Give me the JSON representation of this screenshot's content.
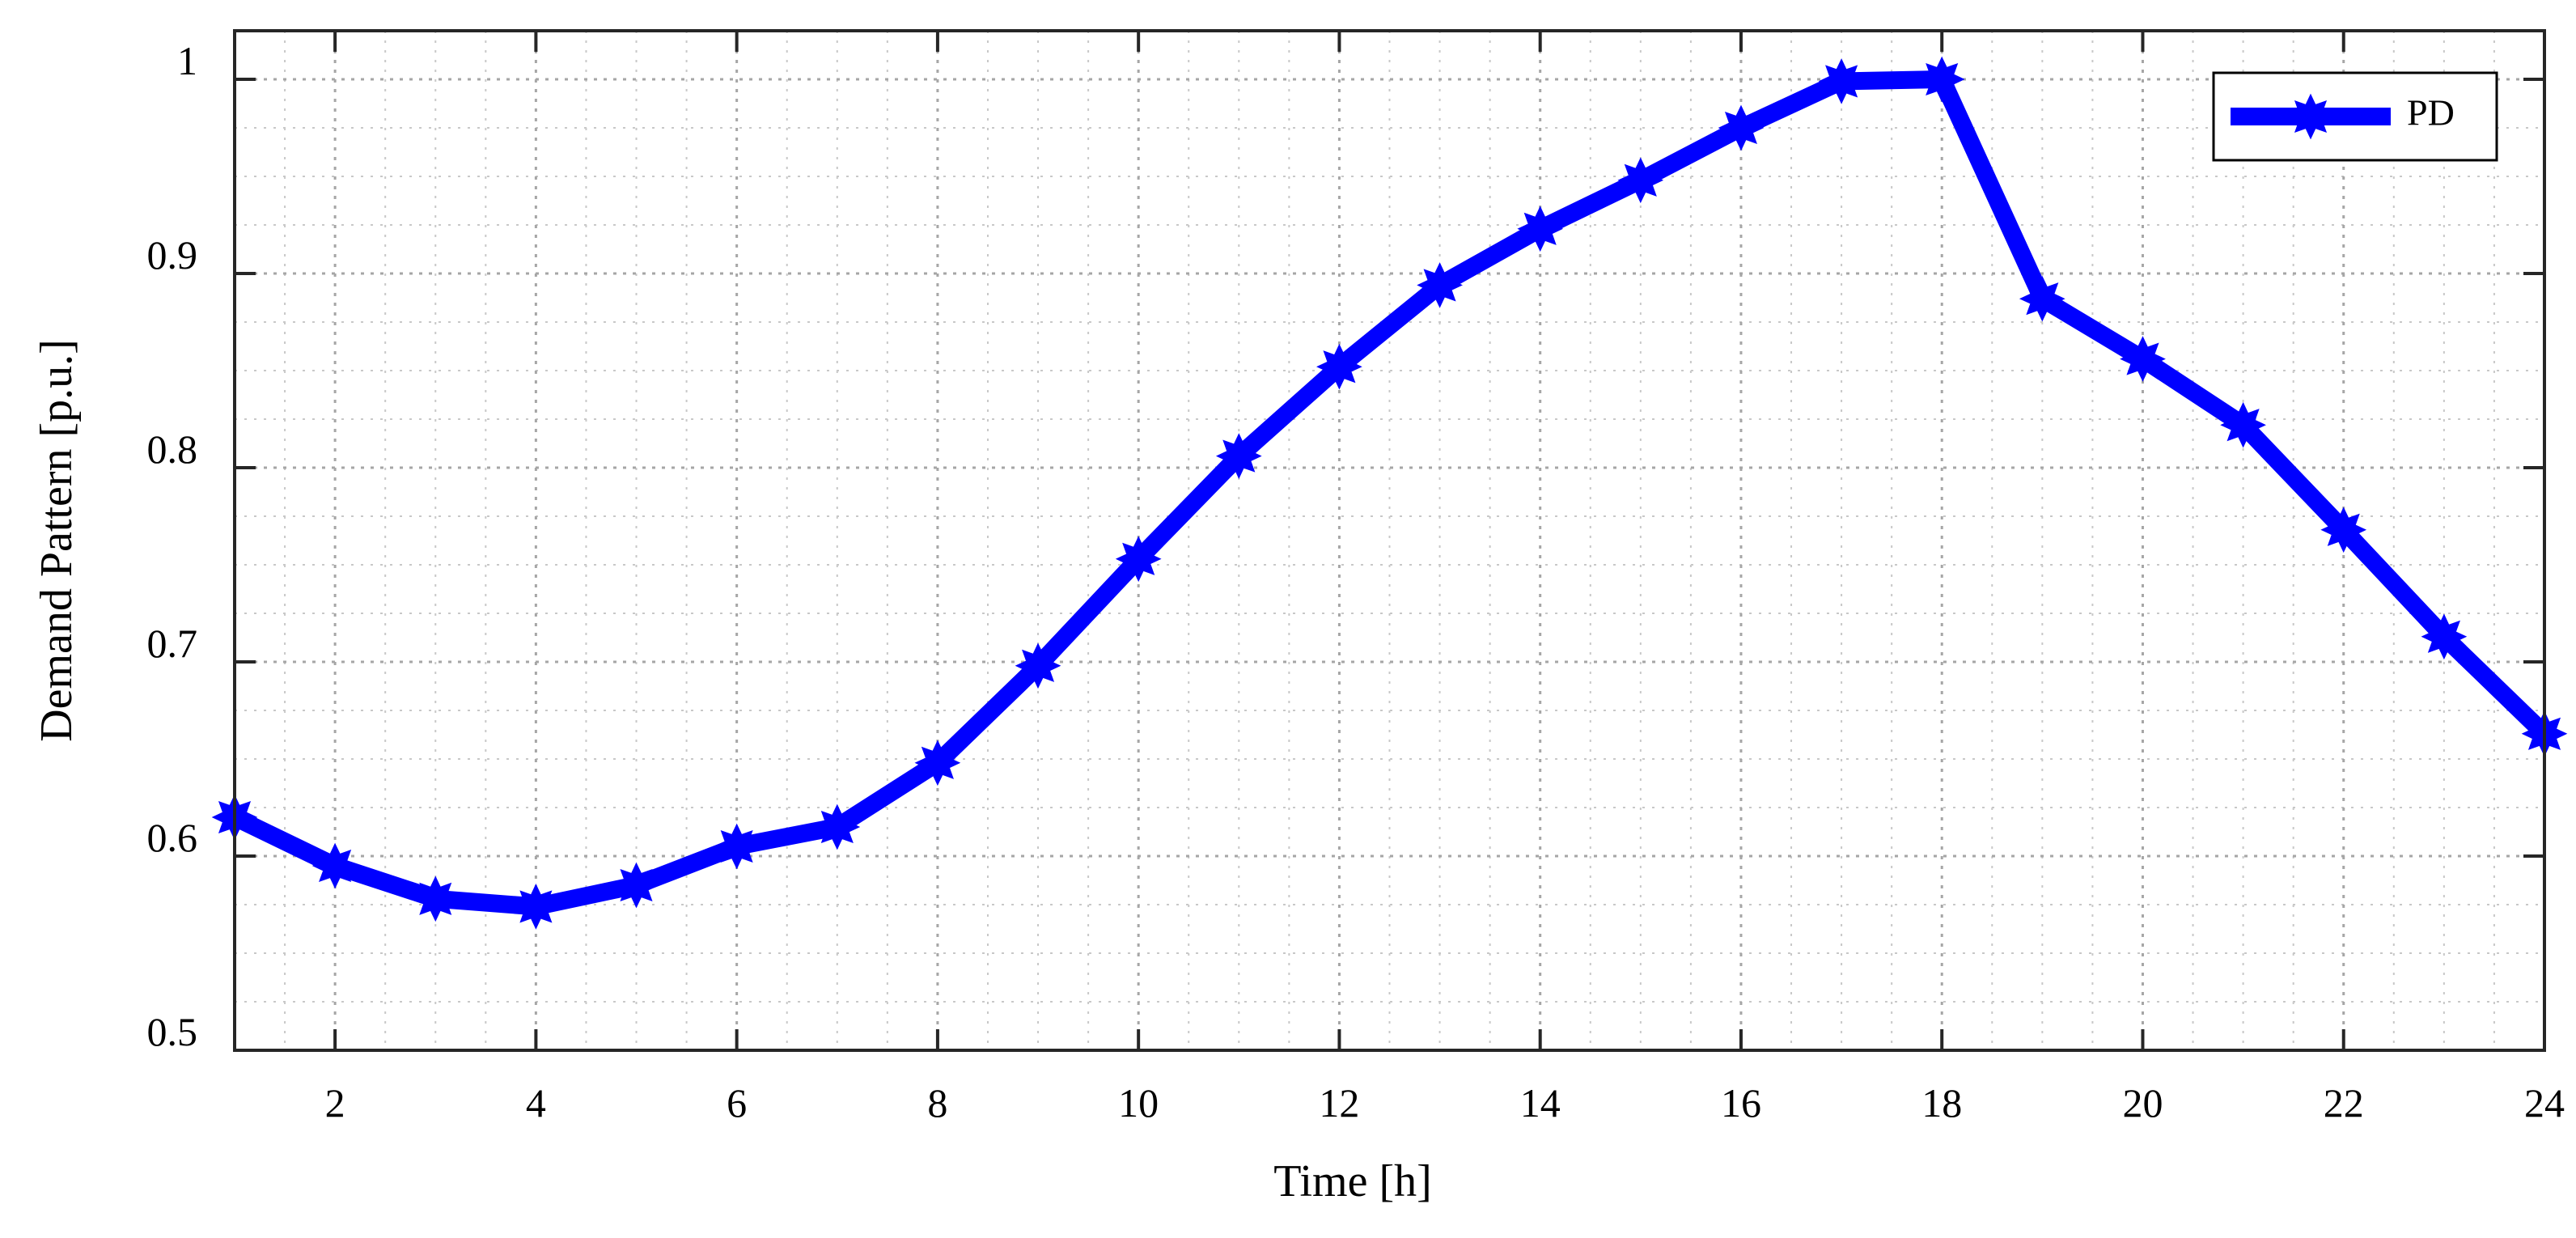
{
  "chart_data": {
    "type": "line",
    "title": "",
    "xlabel": "Time [h]",
    "ylabel": "Demand Pattern [p.u.]",
    "xlim": [
      1,
      24
    ],
    "ylim": [
      0.5,
      1.025
    ],
    "x_ticks": [
      2,
      4,
      6,
      8,
      10,
      12,
      14,
      16,
      18,
      20,
      22,
      24
    ],
    "x_tick_labels": [
      "2",
      "4",
      "6",
      "8",
      "10",
      "12",
      "14",
      "16",
      "18",
      "20",
      "22",
      "24"
    ],
    "y_ticks": [
      0.5,
      0.6,
      0.7,
      0.8,
      0.9,
      1
    ],
    "y_tick_labels": [
      "0.5",
      "0.6",
      "0.7",
      "0.8",
      "0.9",
      "1"
    ],
    "grid": true,
    "minor_grid": true,
    "legend_position": "top-right",
    "x": [
      1,
      2,
      3,
      4,
      5,
      6,
      7,
      8,
      9,
      10,
      11,
      12,
      13,
      14,
      15,
      16,
      17,
      18,
      19,
      20,
      21,
      22,
      23,
      24
    ],
    "series": [
      {
        "name": "PD",
        "color": "#0000ff",
        "marker": "star",
        "values": [
          0.62,
          0.595,
          0.578,
          0.574,
          0.585,
          0.605,
          0.615,
          0.648,
          0.698,
          0.753,
          0.806,
          0.852,
          0.894,
          0.923,
          0.948,
          0.975,
          0.999,
          1.0,
          0.887,
          0.856,
          0.822,
          0.768,
          0.713,
          0.663
        ]
      }
    ]
  }
}
